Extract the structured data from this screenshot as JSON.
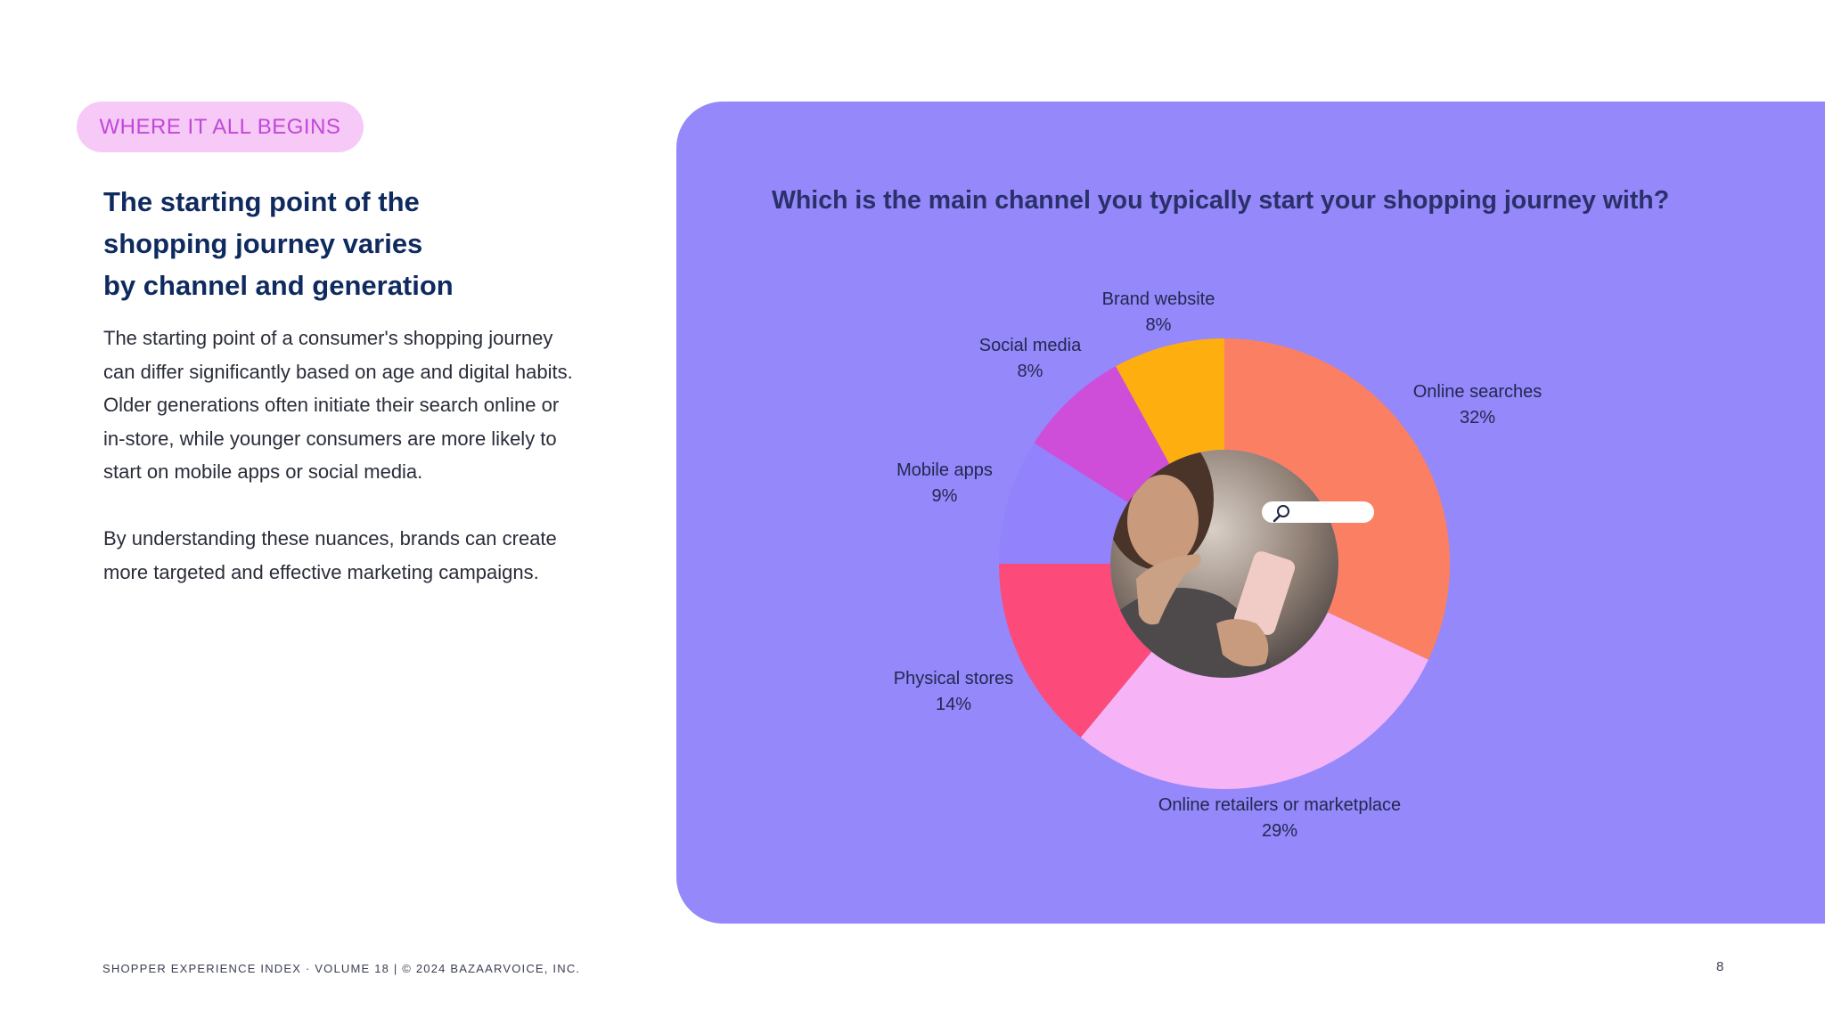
{
  "tag": "WHERE IT ALL BEGINS",
  "headline": [
    "The starting point of the",
    "shopping journey varies",
    "by channel and generation"
  ],
  "paragraph1": [
    "The starting point of a consumer's shopping journey",
    "can differ significantly based on age and digital habits.",
    "Older generations often initiate their search online or",
    "in-store, while younger consumers are more likely to",
    "start on mobile apps or social media."
  ],
  "paragraph2": [
    "By understanding these nuances, brands can create",
    "more targeted and effective marketing campaigns."
  ],
  "question": "Which is the main channel you typically start your shopping journey with?",
  "chart_data": {
    "type": "pie",
    "title": "Which is the main channel you typically start your shopping journey with?",
    "categories": [
      "Online searches",
      "Online retailers or marketplace",
      "Physical stores",
      "Mobile apps",
      "Social media",
      "Brand website"
    ],
    "values": [
      32,
      29,
      14,
      9,
      8,
      8
    ],
    "value_labels": [
      "32%",
      "29%",
      "14%",
      "9%",
      "8%",
      "8%"
    ],
    "colors": [
      "#fb7f63",
      "#f6b4f7",
      "#fc4b7a",
      "#9282fc",
      "#cf4ed9",
      "#ffae0f"
    ],
    "donut": true,
    "center_image": "woman-with-smartphone-photo"
  },
  "colors": {
    "panel": "#9488fa",
    "tag_bg": "#f6c9f7",
    "tag_text": "#c248d8",
    "headline": "#0f2a5f",
    "chart_title": "#2a3068"
  },
  "footer": {
    "left": "SHOPPER EXPERIENCE INDEX · VOLUME 18   |   © 2024 BAZAARVOICE, INC.",
    "page": "8"
  }
}
